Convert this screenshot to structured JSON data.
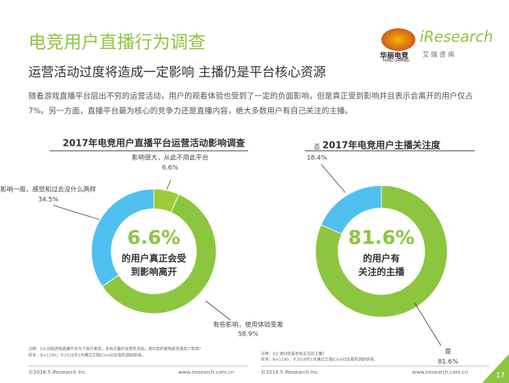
{
  "header": {
    "title": "电竞用户直播行为调查",
    "subtitle": "运营活动过度将造成一定影响 主播仍是平台核心资源",
    "body": "随着游戏直播平台层出不穷的运营活动，用户的观看体验也受到了一定的负面影响，但是真正受到影响并且表示会离开的用户仅占7%。另一方面，直播平台最为核心的竞争力还是直播内容，绝大多数用户有自己关注的主播。"
  },
  "logos": {
    "left": "华丽电竞",
    "left_sub": "HUALI GAMING",
    "right": "iResearch",
    "right_sub": "艾 瑞 咨 询"
  },
  "chart_data": [
    {
      "type": "pie",
      "title": "2017年电竞用户直播平台运营活动影响调查",
      "categories": [
        "影响很大，从此不用此平台",
        "有些影响，使用体验变差",
        "影响一般，感觉和过去没什么两样"
      ],
      "values": [
        6.6,
        58.9,
        34.5
      ],
      "value_labels": [
        "6.6%",
        "58.9%",
        "34.5%"
      ],
      "colors": [
        "#9dcb3a",
        "#8cc63f",
        "#4fc0f0"
      ],
      "center_label": "6.6%",
      "center_text": [
        "的用户真正会受",
        "到影响离开"
      ],
      "note": [
        "注释：D4.目前游戏直播平台为了提升客流，会有大量的运营性活动，请问您的使用是否造成了影响？",
        "样本：N=1190；于2018年1月通过艾瑞iClick社区联机调研获得。"
      ]
    },
    {
      "type": "pie",
      "title": "2017年电竞用户主播关注度",
      "categories": [
        "是",
        "否"
      ],
      "values": [
        81.6,
        18.4
      ],
      "value_labels": [
        "81.6%",
        "18.4%"
      ],
      "colors": [
        "#8cc63f",
        "#4fc0f0"
      ],
      "center_label": "81.6%",
      "center_text": [
        "的用户有",
        "关注的主播"
      ],
      "note": [
        "注释：D3.请问您是否有关注的主播？",
        "样本：N=1190；于2018年1月通过艾瑞iClick社区联机调研获得。"
      ]
    }
  ],
  "footer": {
    "copyright": "©2018.5 iResearch Inc",
    "url": "www.iresearch.com.cn",
    "page": "17"
  }
}
